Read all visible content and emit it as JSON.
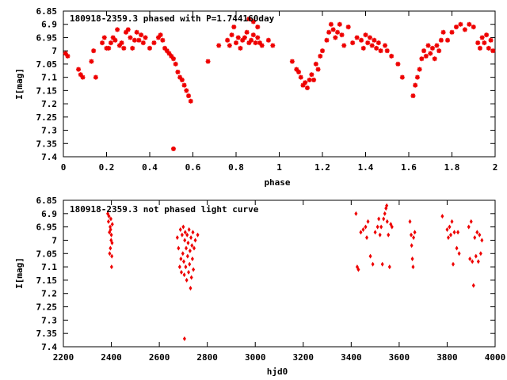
{
  "chart_data": [
    {
      "type": "scatter",
      "title": "180918-2359.3 phased with P=1.744160day",
      "xlabel": "phase",
      "ylabel": "I[mag]",
      "xlim": [
        0,
        2
      ],
      "ylim": [
        7.4,
        6.85
      ],
      "y_inverted": true,
      "x_ticks": [
        0,
        0.2,
        0.4,
        0.6,
        0.8,
        1,
        1.2,
        1.4,
        1.6,
        1.8,
        2
      ],
      "x_tick_labels": [
        "0",
        "0.2",
        "0.4",
        "0.6",
        "0.8",
        "1",
        "1.2",
        "1.4",
        "1.6",
        "1.8",
        "2"
      ],
      "y_ticks": [
        6.85,
        6.9,
        6.95,
        7,
        7.05,
        7.1,
        7.15,
        7.2,
        7.25,
        7.3,
        7.35,
        7.4
      ],
      "y_tick_labels": [
        "6.85",
        "6.9",
        "6.95",
        "7",
        "7.05",
        "7.1",
        "7.15",
        "7.2",
        "7.25",
        "7.3",
        "7.35",
        "7.4"
      ],
      "marker": "asterisk",
      "color": "#ee0000",
      "grid": false,
      "points": [
        [
          0.01,
          7.01
        ],
        [
          0.02,
          7.02
        ],
        [
          0.07,
          7.07
        ],
        [
          0.08,
          7.09
        ],
        [
          0.09,
          7.1
        ],
        [
          0.13,
          7.04
        ],
        [
          0.15,
          7.1
        ],
        [
          0.14,
          7.0
        ],
        [
          0.18,
          6.97
        ],
        [
          0.19,
          6.95
        ],
        [
          0.2,
          6.99
        ],
        [
          0.21,
          6.99
        ],
        [
          0.22,
          6.97
        ],
        [
          0.23,
          6.95
        ],
        [
          0.24,
          6.96
        ],
        [
          0.25,
          6.92
        ],
        [
          0.26,
          6.98
        ],
        [
          0.27,
          6.97
        ],
        [
          0.28,
          6.99
        ],
        [
          0.29,
          6.93
        ],
        [
          0.3,
          6.92
        ],
        [
          0.31,
          6.95
        ],
        [
          0.32,
          6.99
        ],
        [
          0.33,
          6.96
        ],
        [
          0.34,
          6.93
        ],
        [
          0.35,
          6.96
        ],
        [
          0.36,
          6.94
        ],
        [
          0.37,
          6.97
        ],
        [
          0.38,
          6.95
        ],
        [
          0.4,
          6.99
        ],
        [
          0.42,
          6.97
        ],
        [
          0.44,
          6.95
        ],
        [
          0.45,
          6.94
        ],
        [
          0.46,
          6.96
        ],
        [
          0.47,
          6.99
        ],
        [
          0.48,
          7.0
        ],
        [
          0.49,
          7.01
        ],
        [
          0.5,
          7.02
        ],
        [
          0.51,
          7.03
        ],
        [
          0.52,
          7.05
        ],
        [
          0.53,
          7.08
        ],
        [
          0.54,
          7.1
        ],
        [
          0.55,
          7.11
        ],
        [
          0.56,
          7.13
        ],
        [
          0.57,
          7.15
        ],
        [
          0.58,
          7.17
        ],
        [
          0.59,
          7.19
        ],
        [
          0.51,
          7.37
        ],
        [
          0.67,
          7.04
        ],
        [
          0.72,
          6.98
        ],
        [
          0.76,
          6.96
        ],
        [
          0.77,
          6.98
        ],
        [
          0.78,
          6.94
        ],
        [
          0.79,
          6.91
        ],
        [
          0.8,
          6.97
        ],
        [
          0.81,
          6.95
        ],
        [
          0.82,
          6.99
        ],
        [
          0.83,
          6.96
        ],
        [
          0.84,
          6.95
        ],
        [
          0.85,
          6.93
        ],
        [
          0.86,
          6.97
        ],
        [
          0.87,
          6.96
        ],
        [
          0.88,
          6.94
        ],
        [
          0.89,
          6.97
        ],
        [
          0.9,
          6.95
        ],
        [
          0.91,
          6.97
        ],
        [
          0.92,
          6.98
        ],
        [
          0.86,
          6.88
        ],
        [
          0.88,
          6.89
        ],
        [
          0.9,
          6.91
        ],
        [
          0.95,
          6.96
        ],
        [
          0.97,
          6.98
        ],
        [
          1.06,
          7.04
        ],
        [
          1.08,
          7.07
        ],
        [
          1.09,
          7.08
        ],
        [
          1.1,
          7.1
        ],
        [
          1.11,
          7.13
        ],
        [
          1.12,
          7.12
        ],
        [
          1.13,
          7.14
        ],
        [
          1.14,
          7.11
        ],
        [
          1.15,
          7.09
        ],
        [
          1.16,
          7.11
        ],
        [
          1.17,
          7.05
        ],
        [
          1.18,
          7.07
        ],
        [
          1.19,
          7.02
        ],
        [
          1.2,
          7.0
        ],
        [
          1.22,
          6.96
        ],
        [
          1.23,
          6.93
        ],
        [
          1.24,
          6.9
        ],
        [
          1.25,
          6.92
        ],
        [
          1.26,
          6.95
        ],
        [
          1.27,
          6.93
        ],
        [
          1.28,
          6.9
        ],
        [
          1.29,
          6.94
        ],
        [
          1.3,
          6.98
        ],
        [
          1.32,
          6.91
        ],
        [
          1.34,
          6.97
        ],
        [
          1.36,
          6.95
        ],
        [
          1.38,
          6.96
        ],
        [
          1.39,
          6.99
        ],
        [
          1.4,
          6.94
        ],
        [
          1.41,
          6.97
        ],
        [
          1.42,
          6.95
        ],
        [
          1.43,
          6.98
        ],
        [
          1.44,
          6.96
        ],
        [
          1.45,
          6.99
        ],
        [
          1.46,
          6.97
        ],
        [
          1.47,
          7.0
        ],
        [
          1.49,
          6.98
        ],
        [
          1.5,
          7.0
        ],
        [
          1.52,
          7.02
        ],
        [
          1.55,
          7.05
        ],
        [
          1.57,
          7.1
        ],
        [
          1.62,
          7.17
        ],
        [
          1.63,
          7.13
        ],
        [
          1.64,
          7.1
        ],
        [
          1.65,
          7.07
        ],
        [
          1.66,
          7.03
        ],
        [
          1.67,
          7.0
        ],
        [
          1.68,
          7.02
        ],
        [
          1.69,
          6.98
        ],
        [
          1.7,
          7.01
        ],
        [
          1.71,
          6.99
        ],
        [
          1.72,
          7.03
        ],
        [
          1.73,
          6.98
        ],
        [
          1.74,
          7.0
        ],
        [
          1.75,
          6.96
        ],
        [
          1.76,
          6.93
        ],
        [
          1.78,
          6.96
        ],
        [
          1.8,
          6.93
        ],
        [
          1.82,
          6.91
        ],
        [
          1.84,
          6.9
        ],
        [
          1.86,
          6.92
        ],
        [
          1.88,
          6.9
        ],
        [
          1.9,
          6.91
        ],
        [
          1.92,
          6.97
        ],
        [
          1.93,
          6.99
        ],
        [
          1.94,
          6.95
        ],
        [
          1.95,
          6.97
        ],
        [
          1.96,
          6.94
        ],
        [
          1.97,
          6.99
        ],
        [
          1.98,
          6.96
        ],
        [
          1.99,
          7.0
        ]
      ]
    },
    {
      "type": "scatter",
      "title": "180918-2359.3 not phased light curve",
      "xlabel": "hjd0",
      "ylabel": "I[mag]",
      "xlim": [
        2200,
        4000
      ],
      "ylim": [
        7.4,
        6.85
      ],
      "y_inverted": true,
      "x_ticks": [
        2200,
        2400,
        2600,
        2800,
        3000,
        3200,
        3400,
        3600,
        3800,
        4000
      ],
      "x_tick_labels": [
        "2200",
        "2400",
        "2600",
        "2800",
        "3000",
        "3200",
        "3400",
        "3600",
        "3800",
        "4000"
      ],
      "y_ticks": [
        6.85,
        6.9,
        6.95,
        7,
        7.05,
        7.1,
        7.15,
        7.2,
        7.25,
        7.3,
        7.35,
        7.4
      ],
      "y_tick_labels": [
        "6.85",
        "6.9",
        "6.95",
        "7",
        "7.05",
        "7.1",
        "7.15",
        "7.2",
        "7.25",
        "7.3",
        "7.35",
        "7.4"
      ],
      "marker": "diamond",
      "color": "#ee0000",
      "grid": false,
      "points": [
        [
          2385,
          6.9
        ],
        [
          2388,
          6.93
        ],
        [
          2390,
          6.91
        ],
        [
          2392,
          6.97
        ],
        [
          2393,
          7.05
        ],
        [
          2395,
          6.95
        ],
        [
          2396,
          7.03
        ],
        [
          2398,
          6.92
        ],
        [
          2400,
          6.98
        ],
        [
          2401,
          7.1
        ],
        [
          2402,
          7.06
        ],
        [
          2403,
          7.01
        ],
        [
          2404,
          6.94
        ],
        [
          2399,
          7.0
        ],
        [
          2397,
          6.96
        ],
        [
          2675,
          6.99
        ],
        [
          2680,
          7.03
        ],
        [
          2685,
          7.1
        ],
        [
          2688,
          6.96
        ],
        [
          2690,
          7.07
        ],
        [
          2692,
          7.12
        ],
        [
          2695,
          6.98
        ],
        [
          2698,
          7.05
        ],
        [
          2700,
          6.95
        ],
        [
          2702,
          7.08
        ],
        [
          2704,
          7.13
        ],
        [
          2706,
          7.0
        ],
        [
          2708,
          6.97
        ],
        [
          2710,
          7.1
        ],
        [
          2712,
          7.03
        ],
        [
          2714,
          7.15
        ],
        [
          2716,
          6.98
        ],
        [
          2718,
          7.06
        ],
        [
          2720,
          7.01
        ],
        [
          2722,
          7.12
        ],
        [
          2724,
          6.96
        ],
        [
          2726,
          7.09
        ],
        [
          2728,
          7.04
        ],
        [
          2730,
          7.18
        ],
        [
          2732,
          6.99
        ],
        [
          2734,
          7.14
        ],
        [
          2736,
          7.02
        ],
        [
          2738,
          7.07
        ],
        [
          2740,
          6.97
        ],
        [
          2742,
          7.11
        ],
        [
          2745,
          7.03
        ],
        [
          2750,
          7.0
        ],
        [
          2760,
          6.98
        ],
        [
          2705,
          7.37
        ],
        [
          3420,
          6.9
        ],
        [
          3425,
          7.1
        ],
        [
          3430,
          7.11
        ],
        [
          3440,
          6.97
        ],
        [
          3450,
          6.96
        ],
        [
          3460,
          6.95
        ],
        [
          3465,
          6.99
        ],
        [
          3470,
          6.93
        ],
        [
          3480,
          7.06
        ],
        [
          3490,
          7.09
        ],
        [
          3500,
          6.97
        ],
        [
          3510,
          6.95
        ],
        [
          3515,
          6.92
        ],
        [
          3520,
          6.98
        ],
        [
          3525,
          6.95
        ],
        [
          3530,
          7.09
        ],
        [
          3535,
          6.92
        ],
        [
          3540,
          6.9
        ],
        [
          3545,
          6.88
        ],
        [
          3548,
          6.87
        ],
        [
          3550,
          6.93
        ],
        [
          3555,
          6.98
        ],
        [
          3560,
          7.1
        ],
        [
          3565,
          6.94
        ],
        [
          3570,
          6.95
        ],
        [
          3645,
          6.93
        ],
        [
          3650,
          6.98
        ],
        [
          3652,
          7.02
        ],
        [
          3655,
          7.07
        ],
        [
          3658,
          7.1
        ],
        [
          3660,
          6.99
        ],
        [
          3665,
          6.97
        ],
        [
          3780,
          6.91
        ],
        [
          3800,
          6.96
        ],
        [
          3805,
          6.99
        ],
        [
          3810,
          6.95
        ],
        [
          3815,
          6.98
        ],
        [
          3820,
          6.93
        ],
        [
          3825,
          7.09
        ],
        [
          3830,
          6.97
        ],
        [
          3840,
          7.03
        ],
        [
          3845,
          6.97
        ],
        [
          3850,
          7.05
        ],
        [
          3890,
          6.95
        ],
        [
          3895,
          7.07
        ],
        [
          3900,
          6.93
        ],
        [
          3905,
          7.08
        ],
        [
          3910,
          7.17
        ],
        [
          3915,
          6.99
        ],
        [
          3920,
          7.06
        ],
        [
          3925,
          6.97
        ],
        [
          3930,
          7.08
        ],
        [
          3935,
          6.98
        ],
        [
          3940,
          7.05
        ],
        [
          3945,
          7.0
        ]
      ]
    }
  ]
}
